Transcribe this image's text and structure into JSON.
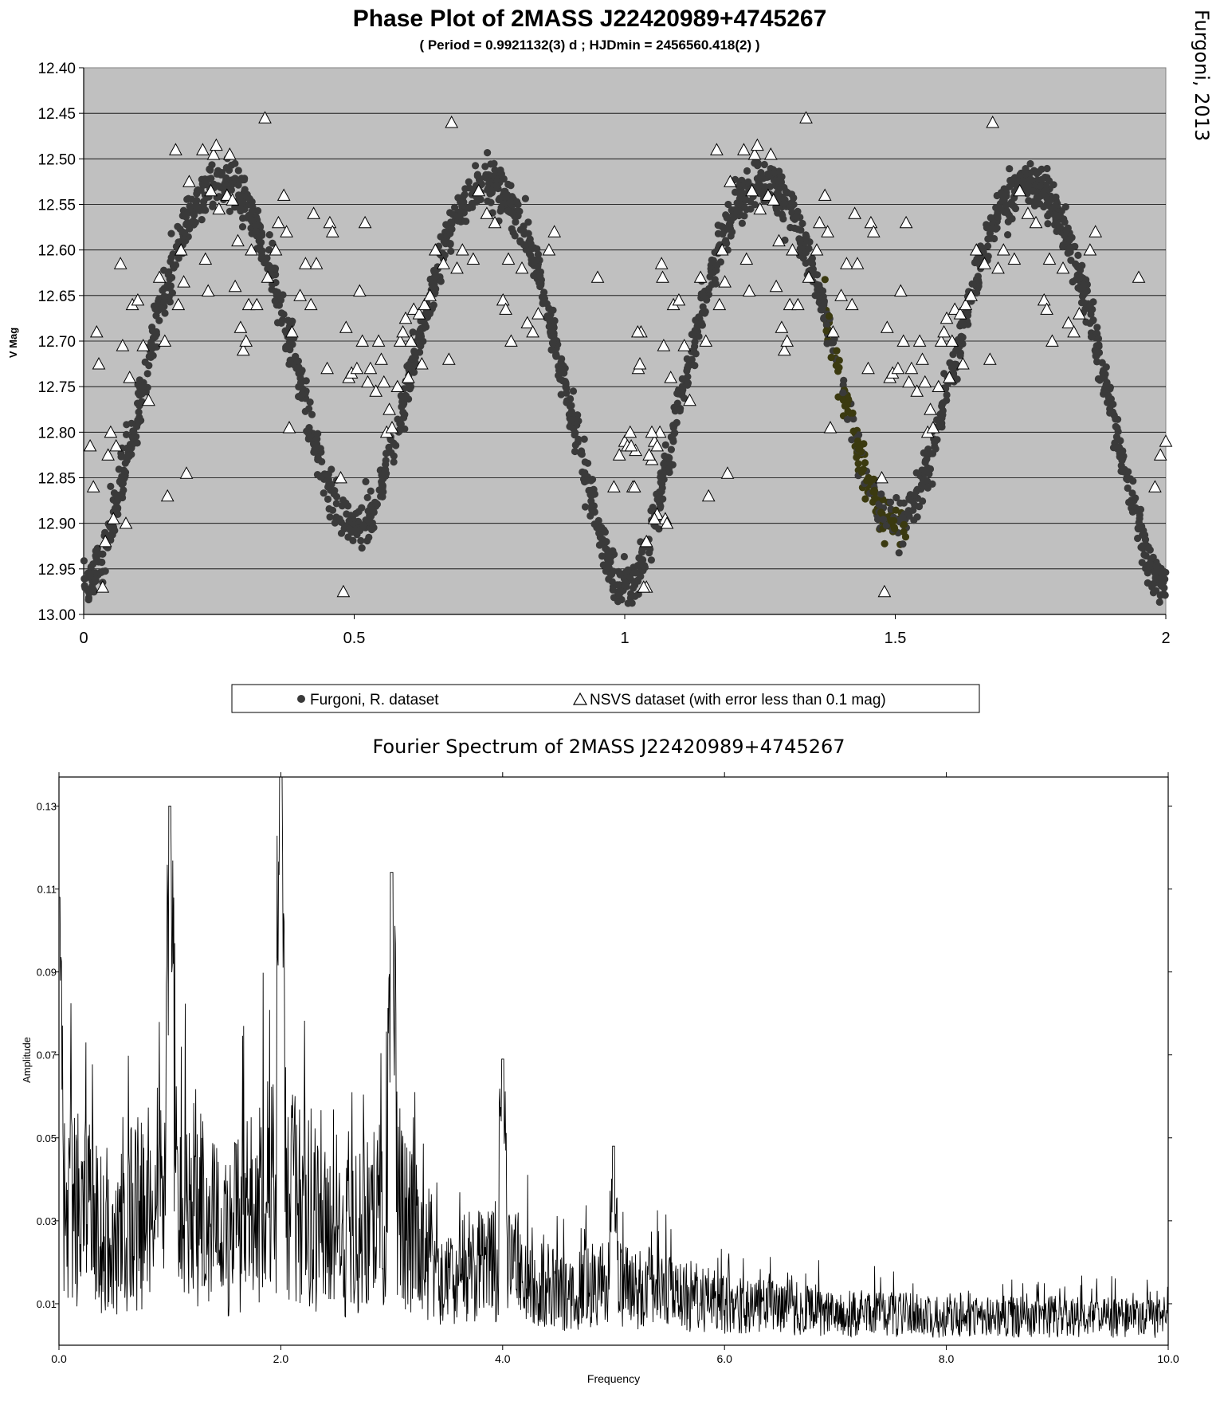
{
  "credit": "Furgoni, 2013",
  "chart_data": [
    {
      "type": "scatter",
      "title": "Phase Plot of 2MASS J22420989+4745267",
      "subtitle": "( Period = 0.9921132(3) d ; HJDmin = 2456560.418(2) )",
      "ylabel": "V Mag",
      "xlabel": "",
      "xlim": [
        0,
        2
      ],
      "ylim": [
        12.4,
        13.0
      ],
      "y_inverted": true,
      "grid": true,
      "x_ticks": [
        "0",
        "0.5",
        "1",
        "1.5",
        "2"
      ],
      "y_ticks": [
        "12.40",
        "12.45",
        "12.50",
        "12.55",
        "12.60",
        "12.65",
        "12.70",
        "12.75",
        "12.80",
        "12.85",
        "12.90",
        "12.95",
        "13.00"
      ],
      "legend_position": "bottom",
      "series": [
        {
          "name": "Furgoni, R. dataset",
          "marker": "circle",
          "color": "#3a3a3a",
          "model": {
            "mean": 12.711,
            "terms": [
              {
                "harmonic": 1,
                "amp": 0.018,
                "phase_offset": 0.0
              },
              {
                "harmonic": 2,
                "amp": 0.197,
                "phase_offset": 0.0
              },
              {
                "harmonic": 4,
                "amp": 0.013,
                "phase_offset": 0.0
              }
            ],
            "extra_primary_depth": 0.03,
            "scatter_mag": 0.013,
            "n_points_per_cycle": 1150
          }
        },
        {
          "name": "NSVS dataset (with error less than 0.1 mag)",
          "marker": "triangle",
          "color": "#ffffff",
          "points": [
            [
              0.012,
              12.815
            ],
            [
              0.018,
              12.86
            ],
            [
              0.024,
              12.69
            ],
            [
              0.028,
              12.725
            ],
            [
              0.035,
              12.97
            ],
            [
              0.04,
              12.92
            ],
            [
              0.045,
              12.825
            ],
            [
              0.05,
              12.8
            ],
            [
              0.055,
              12.895
            ],
            [
              0.06,
              12.815
            ],
            [
              0.068,
              12.615
            ],
            [
              0.072,
              12.705
            ],
            [
              0.078,
              12.9
            ],
            [
              0.085,
              12.74
            ],
            [
              0.09,
              12.66
            ],
            [
              0.1,
              12.655
            ],
            [
              0.11,
              12.705
            ],
            [
              0.12,
              12.765
            ],
            [
              0.14,
              12.63
            ],
            [
              0.15,
              12.7
            ],
            [
              0.155,
              12.87
            ],
            [
              0.17,
              12.49
            ],
            [
              0.175,
              12.66
            ],
            [
              0.18,
              12.6
            ],
            [
              0.185,
              12.635
            ],
            [
              0.19,
              12.845
            ],
            [
              0.195,
              12.525
            ],
            [
              0.22,
              12.49
            ],
            [
              0.225,
              12.61
            ],
            [
              0.23,
              12.645
            ],
            [
              0.235,
              12.535
            ],
            [
              0.24,
              12.495
            ],
            [
              0.245,
              12.485
            ],
            [
              0.25,
              12.555
            ],
            [
              0.265,
              12.54
            ],
            [
              0.27,
              12.495
            ],
            [
              0.275,
              12.545
            ],
            [
              0.28,
              12.64
            ],
            [
              0.285,
              12.59
            ],
            [
              0.29,
              12.685
            ],
            [
              0.295,
              12.71
            ],
            [
              0.3,
              12.7
            ],
            [
              0.305,
              12.66
            ],
            [
              0.31,
              12.6
            ],
            [
              0.32,
              12.66
            ],
            [
              0.335,
              12.455
            ],
            [
              0.34,
              12.63
            ],
            [
              0.355,
              12.6
            ],
            [
              0.36,
              12.57
            ],
            [
              0.37,
              12.54
            ],
            [
              0.375,
              12.58
            ],
            [
              0.38,
              12.795
            ],
            [
              0.385,
              12.69
            ],
            [
              0.4,
              12.65
            ],
            [
              0.41,
              12.615
            ],
            [
              0.42,
              12.66
            ],
            [
              0.425,
              12.56
            ],
            [
              0.43,
              12.615
            ],
            [
              0.45,
              12.73
            ],
            [
              0.455,
              12.57
            ],
            [
              0.46,
              12.58
            ],
            [
              0.475,
              12.85
            ],
            [
              0.48,
              12.975
            ],
            [
              0.485,
              12.685
            ],
            [
              0.49,
              12.74
            ],
            [
              0.495,
              12.735
            ],
            [
              0.505,
              12.73
            ],
            [
              0.51,
              12.645
            ],
            [
              0.515,
              12.7
            ],
            [
              0.52,
              12.57
            ],
            [
              0.525,
              12.745
            ],
            [
              0.53,
              12.73
            ],
            [
              0.54,
              12.755
            ],
            [
              0.545,
              12.7
            ],
            [
              0.55,
              12.72
            ],
            [
              0.555,
              12.745
            ],
            [
              0.56,
              12.8
            ],
            [
              0.565,
              12.775
            ],
            [
              0.57,
              12.795
            ],
            [
              0.58,
              12.75
            ],
            [
              0.585,
              12.7
            ],
            [
              0.59,
              12.69
            ],
            [
              0.595,
              12.675
            ],
            [
              0.6,
              12.74
            ],
            [
              0.605,
              12.7
            ],
            [
              0.61,
              12.665
            ],
            [
              0.62,
              12.67
            ],
            [
              0.625,
              12.725
            ],
            [
              0.63,
              12.66
            ],
            [
              0.64,
              12.65
            ],
            [
              0.65,
              12.6
            ],
            [
              0.665,
              12.615
            ],
            [
              0.675,
              12.72
            ],
            [
              0.68,
              12.46
            ],
            [
              0.69,
              12.62
            ],
            [
              0.7,
              12.6
            ],
            [
              0.72,
              12.61
            ],
            [
              0.73,
              12.535
            ],
            [
              0.745,
              12.56
            ],
            [
              0.76,
              12.57
            ],
            [
              0.775,
              12.655
            ],
            [
              0.78,
              12.665
            ],
            [
              0.785,
              12.61
            ],
            [
              0.79,
              12.7
            ],
            [
              0.81,
              12.62
            ],
            [
              0.82,
              12.68
            ],
            [
              0.83,
              12.69
            ],
            [
              0.84,
              12.67
            ],
            [
              0.86,
              12.6
            ],
            [
              0.87,
              12.58
            ],
            [
              0.95,
              12.63
            ],
            [
              0.98,
              12.86
            ],
            [
              0.99,
              12.825
            ],
            [
              1.0,
              12.81
            ],
            [
              1.005,
              12.815
            ],
            [
              1.01,
              12.8
            ],
            [
              1.015,
              12.86
            ],
            [
              1.02,
              12.82
            ],
            [
              1.025,
              12.73
            ],
            [
              1.03,
              12.69
            ],
            [
              1.04,
              12.97
            ],
            [
              1.05,
              12.83
            ],
            [
              1.055,
              12.81
            ],
            [
              1.06,
              12.89
            ],
            [
              1.065,
              12.8
            ],
            [
              1.07,
              12.63
            ],
            [
              1.075,
              12.895
            ]
          ]
        }
      ]
    },
    {
      "type": "line",
      "title": "Fourier Spectrum of 2MASS J22420989+4745267",
      "xlabel": "Frequency",
      "ylabel": "Amplitude",
      "xlim": [
        0.0,
        10.0
      ],
      "ylim": [
        0.0,
        0.137
      ],
      "x_ticks": [
        "0.0",
        "2.0",
        "4.0",
        "6.0",
        "8.0",
        "10.0"
      ],
      "x_tick_values": [
        0,
        2,
        4,
        6,
        8,
        10
      ],
      "y_ticks": [
        "0.01",
        "0.03",
        "0.05",
        "0.07",
        "0.09",
        "0.11",
        "0.13"
      ],
      "y_tick_values": [
        0.01,
        0.03,
        0.05,
        0.07,
        0.09,
        0.11,
        0.13
      ],
      "grid": false,
      "series": [
        {
          "name": "",
          "color": "#000000",
          "peaks": [
            {
              "f": 0.0,
              "amp": 0.108
            },
            {
              "f": 1.0,
              "amp": 0.13
            },
            {
              "f": 2.0,
              "amp": 0.137
            },
            {
              "f": 3.0,
              "amp": 0.114
            },
            {
              "f": 4.0,
              "amp": 0.069
            },
            {
              "f": 5.0,
              "amp": 0.048
            }
          ],
          "envelope": [
            [
              0.0,
              0.065
            ],
            [
              0.5,
              0.045
            ],
            [
              1.0,
              0.07
            ],
            [
              1.5,
              0.045
            ],
            [
              2.0,
              0.07
            ],
            [
              2.5,
              0.042
            ],
            [
              3.0,
              0.058
            ],
            [
              3.5,
              0.028
            ],
            [
              4.0,
              0.036
            ],
            [
              4.5,
              0.022
            ],
            [
              5.0,
              0.026
            ],
            [
              6.0,
              0.018
            ],
            [
              7.0,
              0.014
            ],
            [
              8.0,
              0.012
            ],
            [
              9.0,
              0.012
            ],
            [
              10.0,
              0.011
            ]
          ],
          "sample_step": 0.0045
        }
      ]
    }
  ]
}
